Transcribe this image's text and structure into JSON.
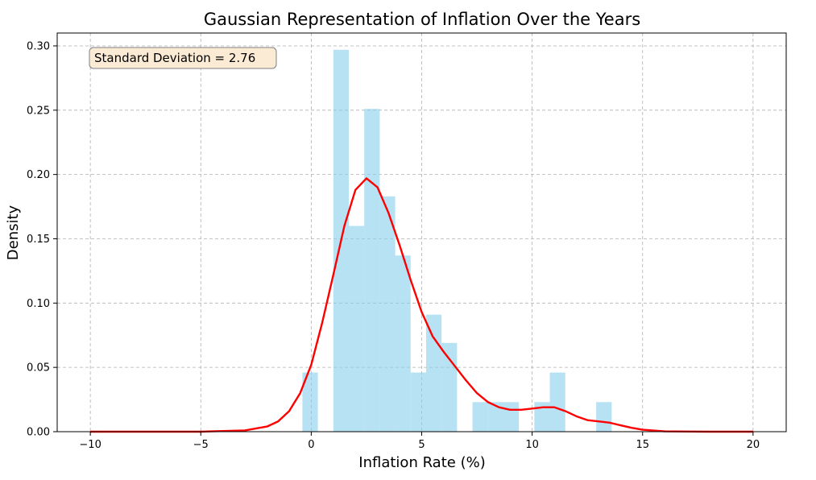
{
  "chart_data": {
    "type": "bar",
    "title": "Gaussian Representation of Inflation Over the Years",
    "xlabel": "Inflation Rate (%)",
    "ylabel": "Density",
    "xlim": [
      -11.5,
      21.5
    ],
    "ylim": [
      0,
      0.31
    ],
    "xticks": [
      -10,
      -5,
      0,
      5,
      10,
      15,
      20
    ],
    "xtick_labels": [
      "−10",
      "−5",
      "0",
      "5",
      "10",
      "15",
      "20"
    ],
    "yticks": [
      0.0,
      0.05,
      0.1,
      0.15,
      0.2,
      0.25,
      0.3
    ],
    "ytick_labels": [
      "0.00",
      "0.05",
      "0.10",
      "0.15",
      "0.20",
      "0.25",
      "0.30"
    ],
    "grid": true,
    "annotation": "Standard Deviation = 2.76",
    "colors": {
      "histogram": "#87ceeb",
      "density_curve": "#ff0000",
      "annotation_fill": "#fbebd5",
      "annotation_edge": "#7f7f7f",
      "grid": "#b0b0b0"
    },
    "histogram": {
      "bin_width": 0.7,
      "bins": [
        {
          "x0": -0.4,
          "x1": 0.3,
          "density": 0.046
        },
        {
          "x0": 1.0,
          "x1": 1.7,
          "density": 0.297
        },
        {
          "x0": 1.7,
          "x1": 2.4,
          "density": 0.16
        },
        {
          "x0": 2.4,
          "x1": 3.1,
          "density": 0.251
        },
        {
          "x0": 3.1,
          "x1": 3.8,
          "density": 0.183
        },
        {
          "x0": 3.8,
          "x1": 4.5,
          "density": 0.137
        },
        {
          "x0": 4.5,
          "x1": 5.2,
          "density": 0.046
        },
        {
          "x0": 5.2,
          "x1": 5.9,
          "density": 0.091
        },
        {
          "x0": 5.9,
          "x1": 6.6,
          "density": 0.069
        },
        {
          "x0": 7.3,
          "x1": 8.0,
          "density": 0.023
        },
        {
          "x0": 8.0,
          "x1": 8.7,
          "density": 0.023
        },
        {
          "x0": 8.7,
          "x1": 9.4,
          "density": 0.023
        },
        {
          "x0": 10.1,
          "x1": 10.8,
          "density": 0.023
        },
        {
          "x0": 10.8,
          "x1": 11.5,
          "density": 0.046
        },
        {
          "x0": 12.9,
          "x1": 13.6,
          "density": 0.023
        }
      ]
    },
    "density_curve": {
      "x": [
        -10,
        -5,
        -3,
        -2,
        -1.5,
        -1,
        -0.5,
        0,
        0.5,
        1,
        1.5,
        2,
        2.5,
        3,
        3.5,
        4,
        4.5,
        5,
        5.5,
        6,
        6.5,
        7,
        7.5,
        8,
        8.5,
        9,
        9.5,
        10,
        10.5,
        11,
        11.5,
        12,
        12.5,
        13,
        13.5,
        14,
        14.5,
        15,
        16,
        17,
        18,
        20
      ],
      "y": [
        0,
        0,
        0.001,
        0.004,
        0.008,
        0.016,
        0.03,
        0.052,
        0.085,
        0.122,
        0.16,
        0.188,
        0.197,
        0.19,
        0.17,
        0.145,
        0.118,
        0.093,
        0.074,
        0.062,
        0.051,
        0.04,
        0.03,
        0.023,
        0.019,
        0.017,
        0.017,
        0.018,
        0.019,
        0.019,
        0.016,
        0.012,
        0.009,
        0.008,
        0.007,
        0.005,
        0.003,
        0.0015,
        0.0003,
        0.0001,
        0,
        0
      ]
    }
  }
}
